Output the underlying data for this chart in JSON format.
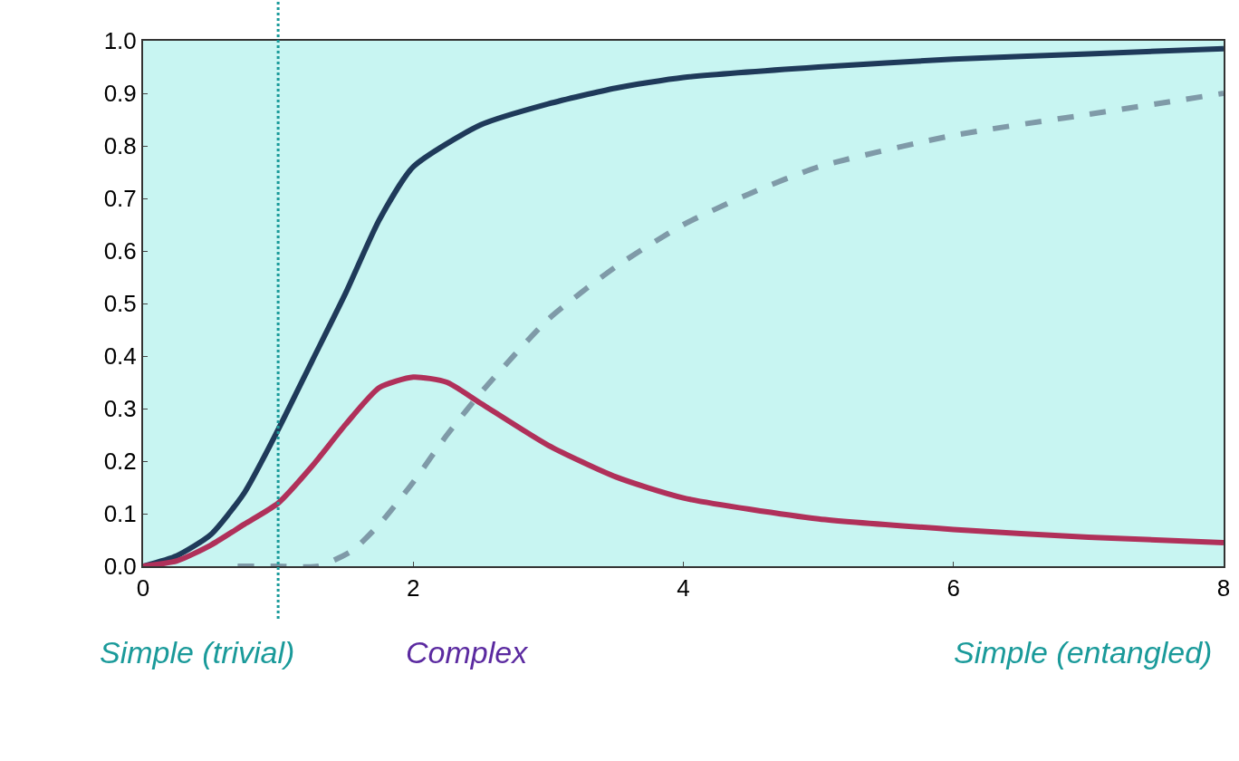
{
  "chart_data": {
    "type": "line",
    "xlim": [
      0,
      8
    ],
    "ylim": [
      0,
      1
    ],
    "xticks": [
      0,
      2,
      4,
      6,
      8
    ],
    "yticks": [
      {
        "value": 0,
        "label": "0.0"
      },
      {
        "value": 0.1,
        "label": "0.1"
      },
      {
        "value": 0.2,
        "label": "0.2"
      },
      {
        "value": 0.3,
        "label": "0.3"
      },
      {
        "value": 0.4,
        "label": "0.4"
      },
      {
        "value": 0.5,
        "label": "0.5"
      },
      {
        "value": 0.6,
        "label": "0.6"
      },
      {
        "value": 0.7,
        "label": "0.7"
      },
      {
        "value": 0.8,
        "label": "0.8"
      },
      {
        "value": 0.9,
        "label": "0.9"
      },
      {
        "value": 1.0,
        "label": "1.0"
      }
    ],
    "grid": false,
    "series": [
      {
        "color": "#1f3a5a",
        "line_style": "solid",
        "x": [
          0,
          0.25,
          0.5,
          0.75,
          1,
          1.25,
          1.5,
          1.75,
          2,
          2.5,
          3,
          3.5,
          4,
          5,
          6,
          7,
          8
        ],
        "values": [
          0,
          0.02,
          0.06,
          0.14,
          0.26,
          0.39,
          0.52,
          0.66,
          0.76,
          0.84,
          0.88,
          0.91,
          0.93,
          0.95,
          0.965,
          0.975,
          0.985
        ]
      },
      {
        "color": "#b0305a",
        "line_style": "solid",
        "x": [
          0,
          0.25,
          0.5,
          0.75,
          1,
          1.25,
          1.5,
          1.75,
          2,
          2.25,
          2.5,
          3,
          3.5,
          4,
          5,
          6,
          7,
          8
        ],
        "values": [
          0,
          0.01,
          0.04,
          0.08,
          0.12,
          0.19,
          0.27,
          0.34,
          0.36,
          0.35,
          0.31,
          0.23,
          0.17,
          0.13,
          0.09,
          0.07,
          0.055,
          0.045
        ]
      },
      {
        "color": "#7f9aa8",
        "line_style": "dashed",
        "x": [
          0.7,
          1.0,
          1.3,
          1.55,
          1.75,
          2,
          2.25,
          2.5,
          3,
          3.5,
          4,
          4.5,
          5,
          6,
          7,
          8
        ],
        "values": [
          0,
          0,
          0,
          0.03,
          0.08,
          0.16,
          0.25,
          0.33,
          0.47,
          0.57,
          0.65,
          0.71,
          0.76,
          0.82,
          0.86,
          0.9
        ]
      }
    ],
    "ref_lines": [
      {
        "axis": "x",
        "value": 1,
        "color": "#1a9a9a",
        "line_style": "dotted"
      }
    ],
    "annotations": [
      "Simple (trivial)",
      "Complex",
      "Simple (entangled)"
    ]
  }
}
